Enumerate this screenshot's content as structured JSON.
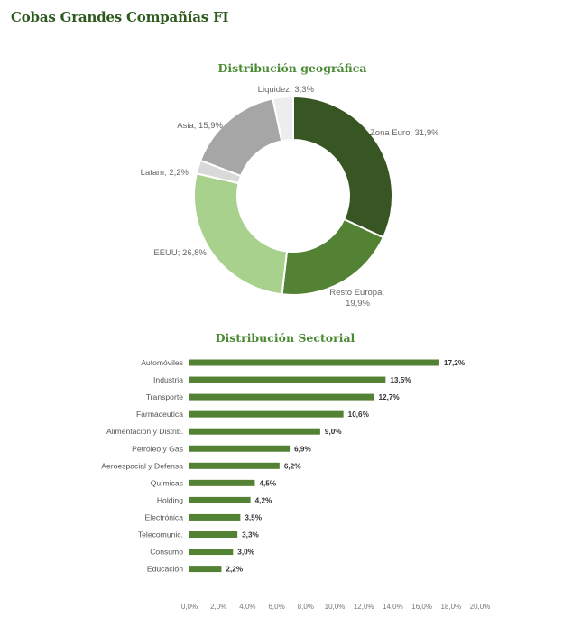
{
  "page": {
    "title": "Cobas Grandes Compañías FI"
  },
  "chart_data": [
    {
      "type": "pie",
      "title": "Distribución geográfica",
      "donut": true,
      "slices": [
        {
          "label": "Zona Euro; 31,9%",
          "value": 31.9,
          "color": "#375623"
        },
        {
          "label": "Resto Europa; 19,9%",
          "value": 19.9,
          "color": "#548235"
        },
        {
          "label": "EEUU; 26,8%",
          "value": 26.8,
          "color": "#a9d18e"
        },
        {
          "label": "Latam; 2,2%",
          "value": 2.2,
          "color": "#d9d9d9"
        },
        {
          "label": "Asia; 15,9%",
          "value": 15.9,
          "color": "#a6a6a6"
        },
        {
          "label": "Liquidez; 3,3%",
          "value": 3.3,
          "color": "#ededed"
        }
      ]
    },
    {
      "type": "bar",
      "orientation": "horizontal",
      "title": "Distribución Sectorial",
      "color": "#548235",
      "categories": [
        "Automóviles",
        "Industria",
        "Transporte",
        "Farmaceutica",
        "Alimentación y Distrib.",
        "Petroleo y Gas",
        "Aeroespacial y Defensa",
        "Químicas",
        "Holding",
        "Electrónica",
        "Telecomunic.",
        "Consumo",
        "Educación"
      ],
      "values": [
        17.2,
        13.5,
        12.7,
        10.6,
        9.0,
        6.9,
        6.2,
        4.5,
        4.2,
        3.5,
        3.3,
        3.0,
        2.2
      ],
      "value_labels": [
        "17,2%",
        "13,5%",
        "12,7%",
        "10,6%",
        "9,0%",
        "6,9%",
        "6,2%",
        "4,5%",
        "4,2%",
        "3,5%",
        "3,3%",
        "3,0%",
        "2,2%"
      ],
      "xlim": [
        0,
        20
      ],
      "xticks": [
        0,
        2,
        4,
        6,
        8,
        10,
        12,
        14,
        16,
        18,
        20
      ],
      "xtick_labels": [
        "0,0%",
        "2,0%",
        "4,0%",
        "6,0%",
        "8,0%",
        "10,0%",
        "12,0%",
        "14,0%",
        "16,0%",
        "18,0%",
        "20,0%"
      ],
      "grid": false
    }
  ]
}
